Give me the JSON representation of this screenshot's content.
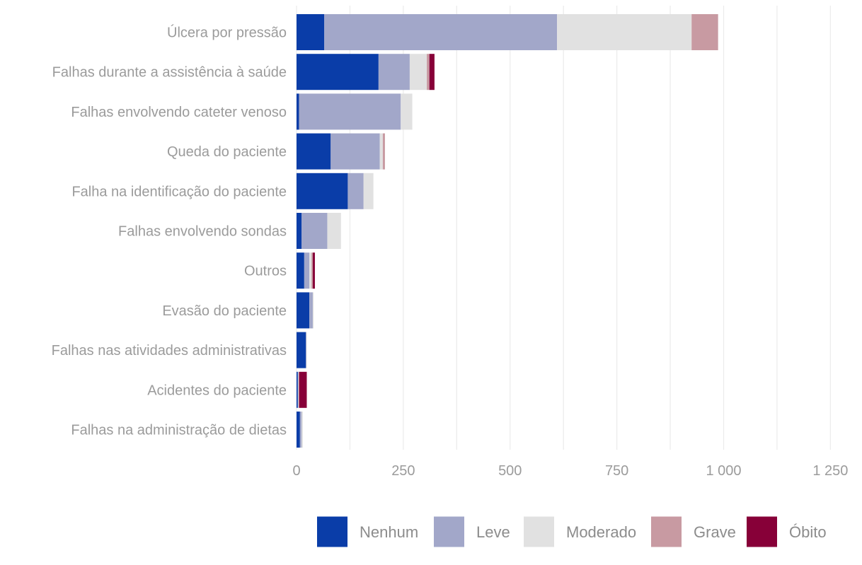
{
  "chart_data": {
    "type": "bar",
    "orientation": "horizontal",
    "stacked": true,
    "categories": [
      "Úlcera por pressão",
      "Falhas durante a assistência à saúde",
      "Falhas envolvendo cateter venoso",
      "Queda do paciente",
      "Falha na identificação do paciente",
      "Falhas envolvendo sondas",
      "Outros",
      "Evasão do paciente",
      "Falhas nas atividades administrativas",
      "Acidentes do paciente",
      "Falhas na administração de dietas"
    ],
    "series": [
      {
        "name": "Nenhum",
        "color": "#0a3da8",
        "values": [
          65,
          192,
          6,
          80,
          120,
          12,
          18,
          30,
          22,
          3,
          8
        ]
      },
      {
        "name": "Leve",
        "color": "#a2a7c9",
        "values": [
          545,
          73,
          238,
          115,
          37,
          60,
          12,
          8,
          1,
          1,
          4
        ]
      },
      {
        "name": "Moderado",
        "color": "#e1e1e1",
        "values": [
          315,
          40,
          27,
          7,
          23,
          32,
          5,
          2,
          1,
          1,
          3
        ]
      },
      {
        "name": "Grave",
        "color": "#c89aa2",
        "values": [
          62,
          6,
          0,
          5,
          0,
          0,
          3,
          0,
          0,
          1,
          0
        ]
      },
      {
        "name": "Óbito",
        "color": "#870038",
        "values": [
          0,
          12,
          0,
          0,
          0,
          0,
          5,
          0,
          0,
          18,
          0
        ]
      }
    ],
    "x_ticks": [
      {
        "value": 0,
        "label": "0"
      },
      {
        "value": 250,
        "label": "250"
      },
      {
        "value": 500,
        "label": "500"
      },
      {
        "value": 750,
        "label": "750"
      },
      {
        "value": 1000,
        "label": "1 000"
      },
      {
        "value": 1250,
        "label": "1 250"
      }
    ],
    "xlim": [
      0,
      1250
    ],
    "grid": true,
    "legend_position": "bottom-right",
    "title": "",
    "xlabel": "",
    "ylabel": ""
  }
}
